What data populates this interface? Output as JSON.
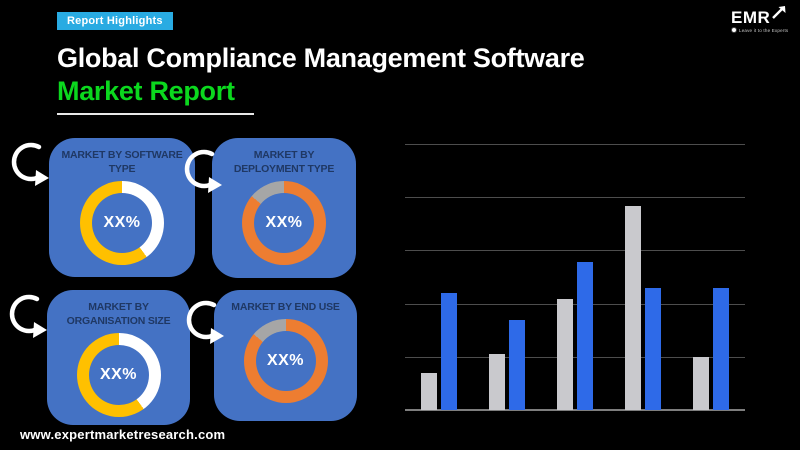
{
  "colors": {
    "background": "#000000",
    "badge_bg": "#29ABE2",
    "title_white": "#FFFFFF",
    "title_green": "#0BD81E",
    "tile_bg": "#4472C4",
    "tile_title": "#1F3864",
    "donut_white": "#FFFFFF",
    "donut_yellow": "#FFC000",
    "donut_orange": "#ED7D31",
    "donut_gray": "#A6A6A6",
    "bar_gray": "#C9C9CD",
    "bar_blue": "#2E6AE8",
    "gridline": "#4D4D4D",
    "axis": "#7E7E7E"
  },
  "header": {
    "badge_label": "Report Highlights",
    "title_line1": "Global Compliance Management Software",
    "title_line2": "Market Report"
  },
  "logo": {
    "name": "EMR",
    "tagline": "Leave it to the Experts"
  },
  "tiles": [
    {
      "title": "MARKET BY SOFTWARE TYPE",
      "center_label": "XX%",
      "donut_segments": [
        {
          "color_key": "donut_white",
          "pct": 40
        },
        {
          "color_key": "donut_yellow",
          "pct": 60
        }
      ]
    },
    {
      "title": "MARKET BY DEPLOYMENT TYPE",
      "center_label": "XX%",
      "donut_segments": [
        {
          "color_key": "donut_orange",
          "pct": 86
        },
        {
          "color_key": "donut_gray",
          "pct": 14
        }
      ]
    },
    {
      "title": "MARKET BY ORGANISATION SIZE",
      "center_label": "XX%",
      "donut_segments": [
        {
          "color_key": "donut_white",
          "pct": 40
        },
        {
          "color_key": "donut_yellow",
          "pct": 60
        }
      ]
    },
    {
      "title": "MARKET BY END USE",
      "center_label": "XX%",
      "donut_segments": [
        {
          "color_key": "donut_orange",
          "pct": 86
        },
        {
          "color_key": "donut_gray",
          "pct": 14
        }
      ]
    }
  ],
  "chart_data": {
    "type": "bar",
    "title": "",
    "xlabel": "",
    "ylabel": "",
    "categories": [
      "",
      "",
      "",
      "",
      ""
    ],
    "series": [
      {
        "name": "gray-series",
        "color_key": "bar_gray",
        "values": [
          14,
          21,
          42,
          77,
          20
        ]
      },
      {
        "name": "blue-series",
        "color_key": "bar_blue",
        "values": [
          44,
          34,
          56,
          46,
          46
        ]
      }
    ],
    "ylim": [
      0,
      100
    ],
    "gridline_step": 20,
    "grid": true,
    "legend_position": "none",
    "tick_labels_visible": false
  },
  "footer": {
    "url": "www.expertmarketresearch.com"
  }
}
